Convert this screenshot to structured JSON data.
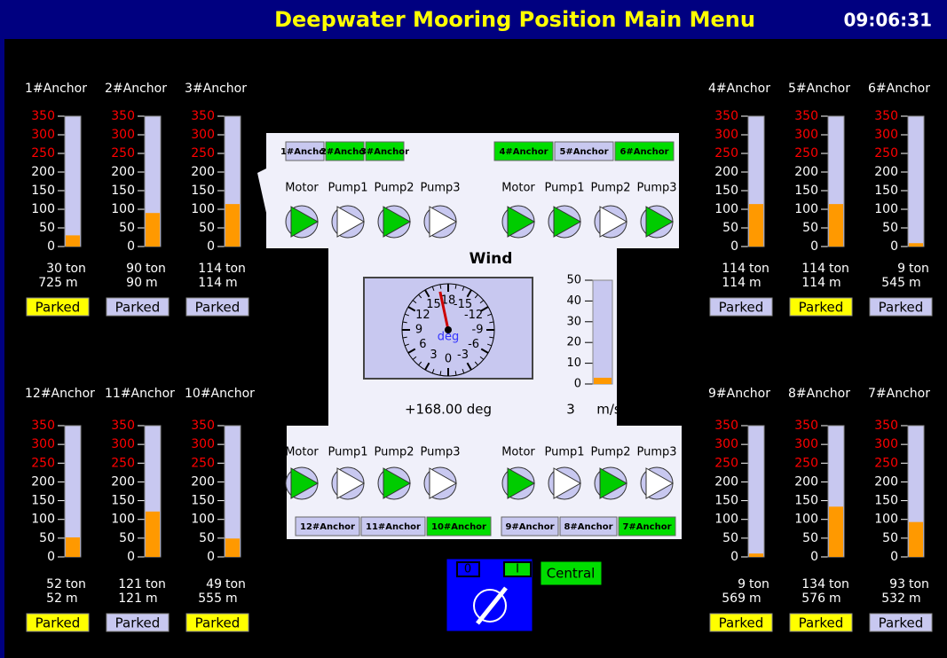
{
  "header": {
    "title": "Deepwater Mooring Position Main Menu",
    "time": "09:06:31"
  },
  "gauge_scale": {
    "ylim": [
      0,
      350
    ],
    "ticks": [
      0,
      50,
      100,
      150,
      200,
      250,
      300,
      350
    ],
    "tick_colors": [
      "#ffffff",
      "#ffffff",
      "#ffffff",
      "#ffffff",
      "#ffffff",
      "#ff0000",
      "#ff0000",
      "#ff0000"
    ],
    "bar_color": "#ff9900",
    "track_color": "#c8c8f0"
  },
  "units": {
    "tension": "ton",
    "length": "m"
  },
  "anchors": [
    {
      "label": "1#Anchor",
      "tension": 30,
      "length": 725,
      "status": "Parked",
      "status_color": "#ffff00"
    },
    {
      "label": "2#Anchor",
      "tension": 90,
      "length": 90,
      "status": "Parked",
      "status_color": "#c8c8f0"
    },
    {
      "label": "3#Anchor",
      "tension": 114,
      "length": 114,
      "status": "Parked",
      "status_color": "#c8c8f0"
    },
    {
      "label": "4#Anchor",
      "tension": 114,
      "length": 114,
      "status": "Parked",
      "status_color": "#c8c8f0"
    },
    {
      "label": "5#Anchor",
      "tension": 114,
      "length": 114,
      "status": "Parked",
      "status_color": "#ffff00"
    },
    {
      "label": "6#Anchor",
      "tension": 9,
      "length": 545,
      "status": "Parked",
      "status_color": "#c8c8f0"
    },
    {
      "label": "12#Anchor",
      "tension": 52,
      "length": 52,
      "status": "Parked",
      "status_color": "#ffff00"
    },
    {
      "label": "11#Anchor",
      "tension": 121,
      "length": 121,
      "status": "Parked",
      "status_color": "#c8c8f0"
    },
    {
      "label": "10#Anchor",
      "tension": 49,
      "length": 555,
      "status": "Parked",
      "status_color": "#ffff00"
    },
    {
      "label": "9#Anchor",
      "tension": 9,
      "length": 569,
      "status": "Parked",
      "status_color": "#ffff00"
    },
    {
      "label": "8#Anchor",
      "tension": 134,
      "length": 576,
      "status": "Parked",
      "status_color": "#ffff00"
    },
    {
      "label": "7#Anchor",
      "tension": 93,
      "length": 532,
      "status": "Parked",
      "status_color": "#c8c8f0"
    }
  ],
  "pump_panels": [
    {
      "buttons": [
        {
          "label": "1#Anchor",
          "active": false
        },
        {
          "label": "2#Anchor",
          "active": true
        },
        {
          "label": "3#Anchor",
          "active": true
        }
      ],
      "pumps": [
        {
          "label": "Motor",
          "running": true
        },
        {
          "label": "Pump1",
          "running": false
        },
        {
          "label": "Pump2",
          "running": true
        },
        {
          "label": "Pump3",
          "running": false
        }
      ]
    },
    {
      "buttons": [
        {
          "label": "4#Anchor",
          "active": true
        },
        {
          "label": "5#Anchor",
          "active": false
        },
        {
          "label": "6#Anchor",
          "active": true
        }
      ],
      "pumps": [
        {
          "label": "Motor",
          "running": true
        },
        {
          "label": "Pump1",
          "running": true
        },
        {
          "label": "Pump2",
          "running": false
        },
        {
          "label": "Pump3",
          "running": true
        }
      ]
    },
    {
      "buttons": [
        {
          "label": "12#Anchor",
          "active": false
        },
        {
          "label": "11#Anchor",
          "active": false
        },
        {
          "label": "10#Anchor",
          "active": true
        }
      ],
      "pumps": [
        {
          "label": "Motor",
          "running": true
        },
        {
          "label": "Pump1",
          "running": false
        },
        {
          "label": "Pump2",
          "running": true
        },
        {
          "label": "Pump3",
          "running": false
        }
      ]
    },
    {
      "buttons": [
        {
          "label": "9#Anchor",
          "active": false
        },
        {
          "label": "8#Anchor",
          "active": false
        },
        {
          "label": "7#Anchor",
          "active": true
        }
      ],
      "pumps": [
        {
          "label": "Motor",
          "running": true
        },
        {
          "label": "Pump1",
          "running": false
        },
        {
          "label": "Pump2",
          "running": true
        },
        {
          "label": "Pump3",
          "running": false
        }
      ]
    }
  ],
  "wind": {
    "title": "Wind",
    "dial_ticks": [
      {
        "value": 180,
        "label": "18"
      },
      {
        "value": 150,
        "label": "15"
      },
      {
        "value": 120,
        "label": "12"
      },
      {
        "value": 90,
        "label": "9"
      },
      {
        "value": 60,
        "label": "6"
      },
      {
        "value": 30,
        "label": "3"
      },
      {
        "value": 0,
        "label": "0"
      },
      {
        "value": -30,
        "label": "-3"
      },
      {
        "value": -60,
        "label": "-6"
      },
      {
        "value": -90,
        "label": "-9"
      },
      {
        "value": -120,
        "label": "-12"
      },
      {
        "value": -150,
        "label": "-15"
      }
    ],
    "dial_unit": "deg",
    "direction": 168,
    "direction_label": "+168.00 deg",
    "speed": 3,
    "speed_lim": [
      0,
      50
    ],
    "speed_ticks": [
      0,
      10,
      20,
      30,
      40,
      50
    ],
    "speed_unit": "m/s"
  },
  "switch": {
    "off": "0",
    "on": "I",
    "mode": "Central"
  }
}
